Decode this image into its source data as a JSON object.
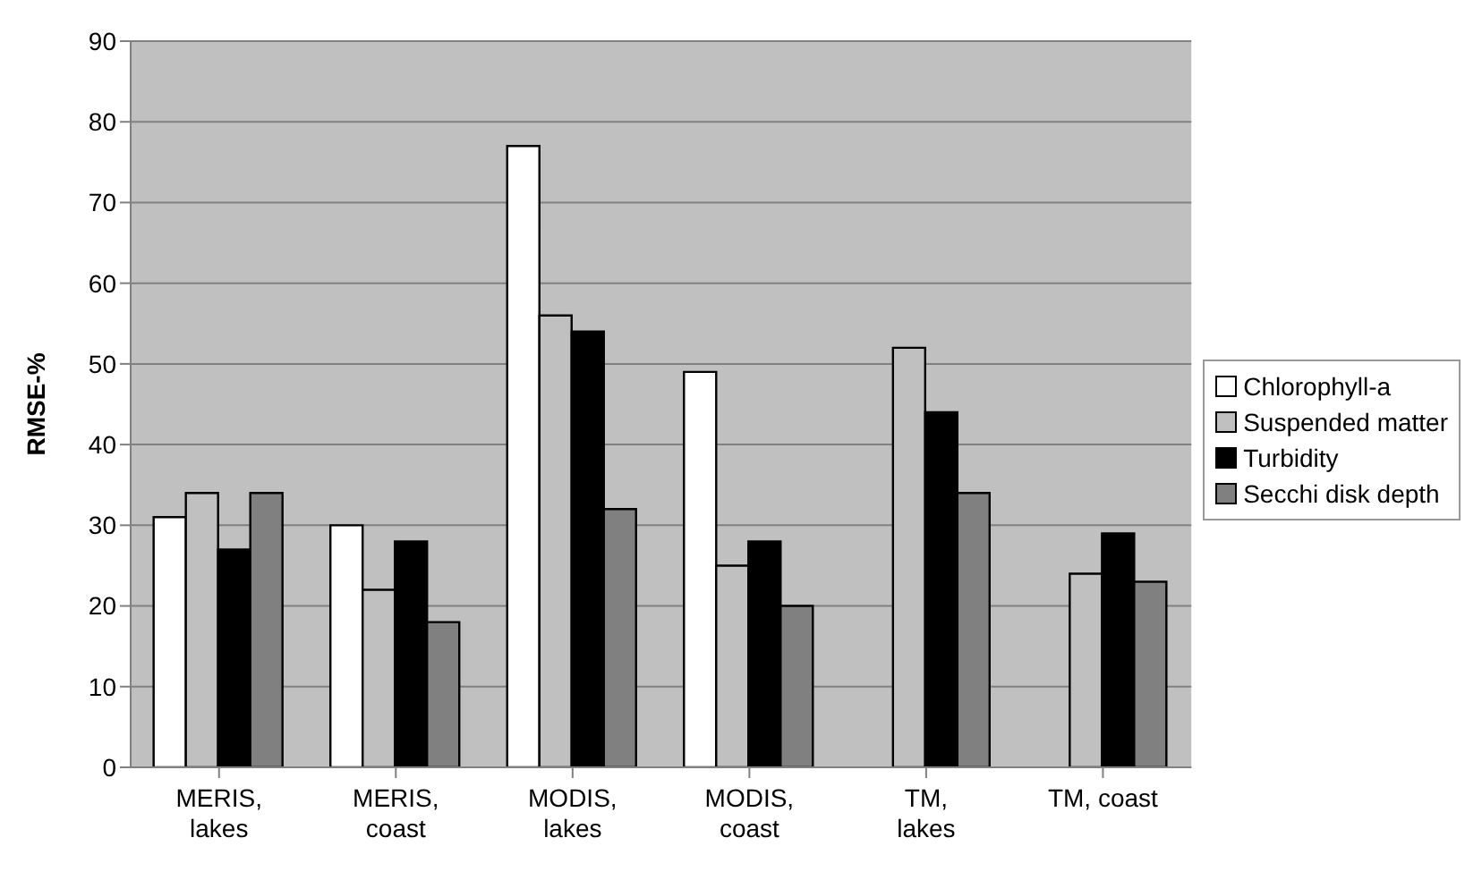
{
  "chart_data": {
    "type": "bar",
    "ylabel": "RMSE-%",
    "categories": [
      "MERIS,\nlakes",
      "MERIS,\ncoast",
      "MODIS,\nlakes",
      "MODIS,\ncoast",
      "TM,\nlakes",
      "TM, coast"
    ],
    "series": [
      {
        "name": "Chlorophyll-a",
        "color": "#ffffff",
        "values": [
          31,
          30,
          77,
          49,
          null,
          null
        ]
      },
      {
        "name": "Suspended matter",
        "color": "#c0c0c0",
        "values": [
          34,
          22,
          56,
          25,
          52,
          24
        ]
      },
      {
        "name": "Turbidity",
        "color": "#000000",
        "values": [
          27,
          28,
          54,
          28,
          44,
          29
        ]
      },
      {
        "name": "Secchi disk depth",
        "color": "#808080",
        "values": [
          34,
          18,
          32,
          20,
          34,
          23
        ]
      }
    ],
    "ylim": [
      0,
      90
    ],
    "yticks": [
      0,
      10,
      20,
      30,
      40,
      50,
      60,
      70,
      80,
      90
    ],
    "grid": "y",
    "legend": "right"
  }
}
